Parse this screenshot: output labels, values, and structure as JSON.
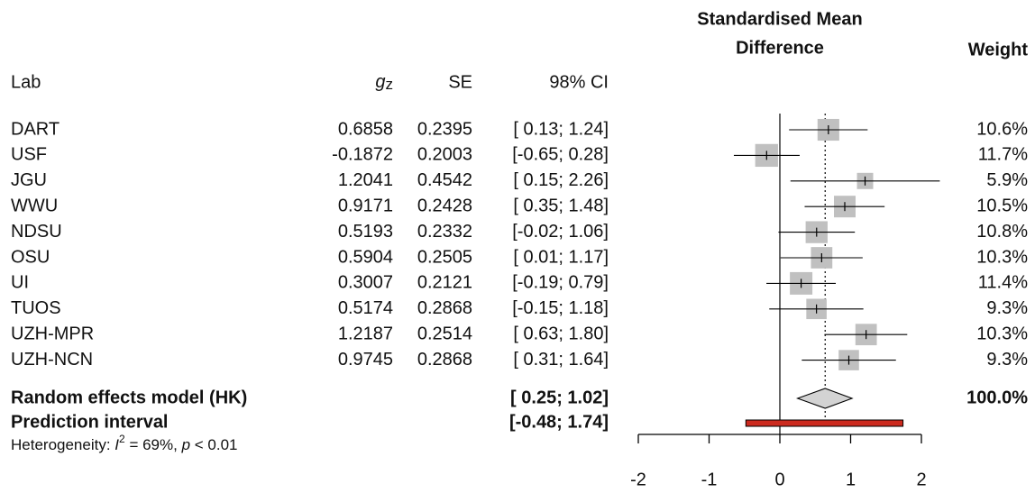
{
  "chart_data": {
    "type": "forest",
    "plot_title_lines": [
      "Standardised Mean",
      "Difference"
    ],
    "headers": {
      "lab": "Lab",
      "g": "g",
      "g_sub": "z",
      "se": "SE",
      "ci": "98% CI",
      "weight": "Weight"
    },
    "labs": [
      "DART",
      "USF",
      "JGU",
      "WWU",
      "NDSU",
      "OSU",
      "UI",
      "TUOS",
      "UZH-MPR",
      "UZH-NCN"
    ],
    "g": [
      0.6858,
      -0.1872,
      1.2041,
      0.9171,
      0.5193,
      0.5904,
      0.3007,
      0.5174,
      1.2187,
      0.9745
    ],
    "se": [
      0.2395,
      0.2003,
      0.4542,
      0.2428,
      0.2332,
      0.2505,
      0.2121,
      0.2868,
      0.2514,
      0.2868
    ],
    "ci_low": [
      0.13,
      -0.65,
      0.15,
      0.35,
      -0.02,
      0.01,
      -0.19,
      -0.15,
      0.63,
      0.31
    ],
    "ci_high": [
      1.24,
      0.28,
      2.26,
      1.48,
      1.06,
      1.17,
      0.79,
      1.18,
      1.8,
      1.64
    ],
    "ci_labels": [
      "[ 0.13; 1.24]",
      "[-0.65; 0.28]",
      "[ 0.15; 2.26]",
      "[ 0.35; 1.48]",
      "[-0.02; 1.06]",
      "[ 0.01; 1.17]",
      "[-0.19; 0.79]",
      "[-0.15; 1.18]",
      "[ 0.63; 1.80]",
      "[ 0.31; 1.64]"
    ],
    "weights": [
      10.6,
      11.7,
      5.9,
      10.5,
      10.8,
      10.3,
      11.4,
      9.3,
      10.3,
      9.3
    ],
    "weight_labels": [
      "10.6%",
      "11.7%",
      "5.9%",
      "10.5%",
      "10.8%",
      "10.3%",
      "11.4%",
      "9.3%",
      "10.3%",
      "9.3%"
    ],
    "square_color": "#c0c0c0",
    "summary": {
      "label": "Random effects model (HK)",
      "estimate": 0.64,
      "ci_low": 0.25,
      "ci_high": 1.02,
      "ci_label": "[ 0.25; 1.02]",
      "weight": 100.0,
      "weight_label": "100.0%",
      "color": "#d3d3d3"
    },
    "prediction": {
      "label": "Prediction interval",
      "low": -0.48,
      "high": 1.74,
      "ci_label": "[-0.48; 1.74]",
      "color": "#cc2a1e"
    },
    "heterogeneity": {
      "prefix": "Heterogeneity: ",
      "i2_symbol": "I",
      "i2_sup": "2",
      "i2_rest": " = 69%, ",
      "p_symbol": "p",
      "p_rest": " < 0.01"
    },
    "xlim": [
      -2,
      2
    ],
    "xticks": [
      -2,
      -1,
      0,
      1,
      2
    ]
  }
}
